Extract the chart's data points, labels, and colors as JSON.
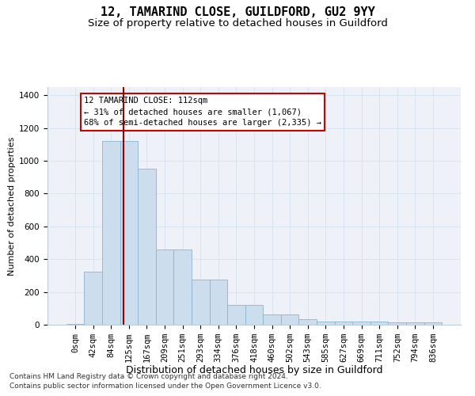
{
  "title": "12, TAMARIND CLOSE, GUILDFORD, GU2 9YY",
  "subtitle": "Size of property relative to detached houses in Guildford",
  "xlabel": "Distribution of detached houses by size in Guildford",
  "ylabel": "Number of detached properties",
  "footer1": "Contains HM Land Registry data © Crown copyright and database right 2024.",
  "footer2": "Contains public sector information licensed under the Open Government Licence v3.0.",
  "bar_labels": [
    "0sqm",
    "42sqm",
    "84sqm",
    "125sqm",
    "167sqm",
    "209sqm",
    "251sqm",
    "293sqm",
    "334sqm",
    "376sqm",
    "418sqm",
    "460sqm",
    "502sqm",
    "543sqm",
    "585sqm",
    "627sqm",
    "669sqm",
    "711sqm",
    "752sqm",
    "794sqm",
    "836sqm"
  ],
  "bar_values": [
    5,
    325,
    1120,
    1120,
    950,
    460,
    460,
    275,
    275,
    120,
    120,
    65,
    65,
    35,
    20,
    20,
    20,
    20,
    15,
    15,
    15
  ],
  "bar_color": "#ccdded",
  "bar_edge_color": "#8ab4d4",
  "annotation_text": "12 TAMARIND CLOSE: 112sqm\n← 31% of detached houses are smaller (1,067)\n68% of semi-detached houses are larger (2,335) →",
  "vline_color": "#990000",
  "annotation_box_color": "#ffffff",
  "annotation_box_edge": "#cc0000",
  "ylim": [
    0,
    1450
  ],
  "yticks": [
    0,
    200,
    400,
    600,
    800,
    1000,
    1200,
    1400
  ],
  "grid_color": "#d8e4f0",
  "bg_color": "#eef2f8",
  "title_fontsize": 11,
  "subtitle_fontsize": 9.5,
  "xlabel_fontsize": 9,
  "ylabel_fontsize": 8,
  "tick_fontsize": 7.5,
  "annotation_fontsize": 7.5,
  "footer_fontsize": 6.5
}
